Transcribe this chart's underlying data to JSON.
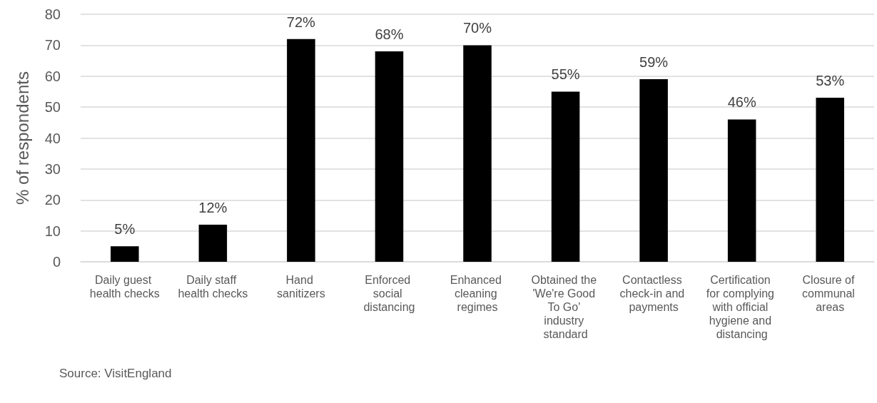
{
  "chart_data": {
    "type": "bar",
    "categories": [
      "Daily guest health checks",
      "Daily staff health checks",
      "Hand sanitizers",
      "Enforced social distancing",
      "Enhanced cleaning regimes",
      "Obtained the 'We're Good To Go' industry standard",
      "Contactless check-in and payments",
      "Certification for complying with official hygiene and distancing",
      "Closure of communal areas"
    ],
    "values": [
      5,
      12,
      72,
      68,
      70,
      55,
      59,
      46,
      53
    ],
    "value_labels": [
      "5%",
      "12%",
      "72%",
      "68%",
      "70%",
      "55%",
      "59%",
      "46%",
      "53%"
    ],
    "color": "#000000",
    "ylabel": "% of respondents",
    "ylim": [
      0,
      80
    ],
    "yticks": [
      0,
      10,
      20,
      30,
      40,
      50,
      60,
      70,
      80
    ],
    "grid": true,
    "annotations": [
      "Source: VisitEngland"
    ]
  }
}
